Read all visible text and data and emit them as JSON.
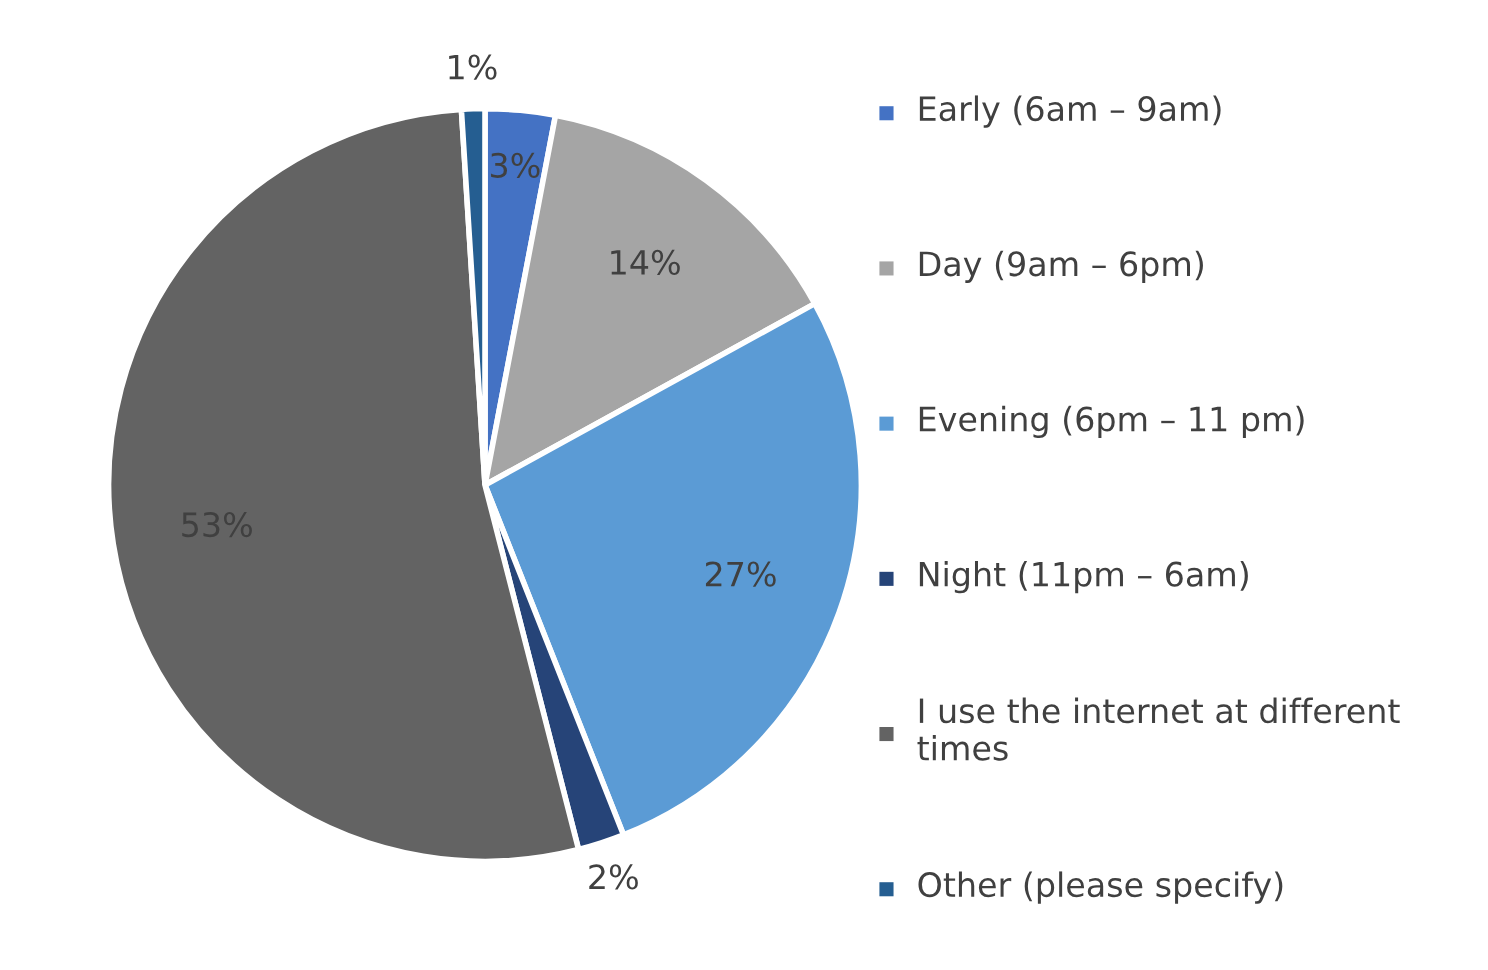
{
  "chart_data": {
    "type": "pie",
    "categories": [
      "Early (6am – 9am)",
      "Day (9am – 6pm)",
      "Evening (6pm – 11 pm)",
      "Night (11pm – 6am)",
      "I use the internet at different times",
      "Other (please specify)"
    ],
    "values": [
      3,
      14,
      27,
      2,
      53,
      1
    ],
    "value_labels": [
      "3%",
      "14%",
      "27%",
      "2%",
      "53%",
      "1%"
    ],
    "colors": [
      "#4472c4",
      "#a5a5a5",
      "#5b9bd5",
      "#264478",
      "#636363",
      "#255e91"
    ],
    "legend": "right"
  }
}
